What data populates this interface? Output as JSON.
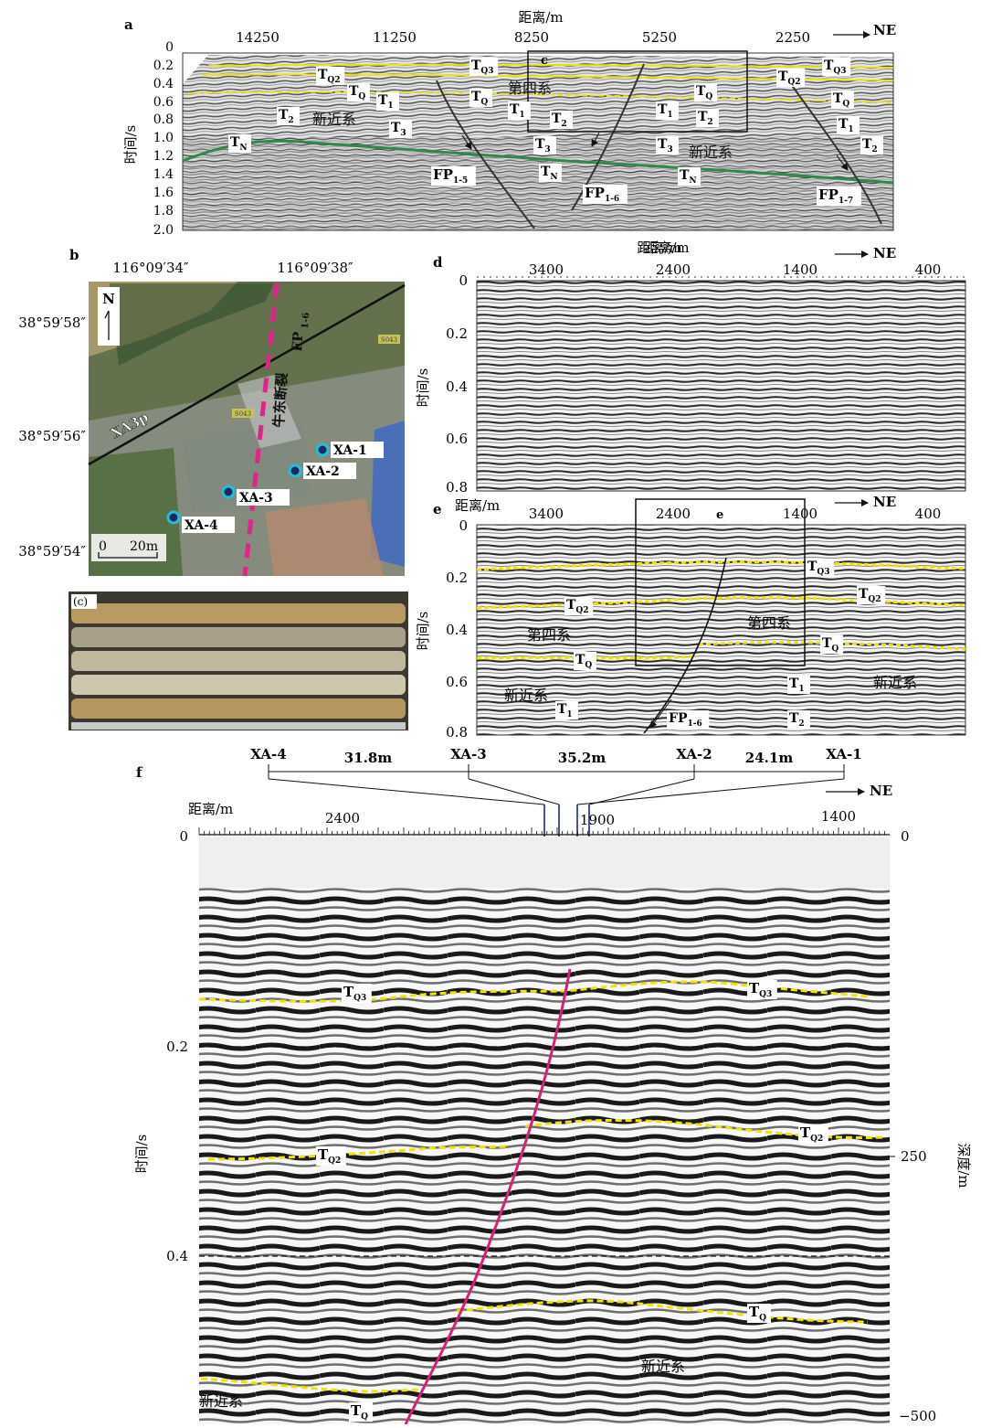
{
  "panels": {
    "a": {
      "letter": "a",
      "xaxis_title": "距离/m",
      "xaxis_bottom_title": "距离/m",
      "yaxis_title": "时间/s",
      "x_ticks": [
        "14250",
        "11250",
        "8250",
        "5250",
        "2250"
      ],
      "y_ticks": [
        "0",
        "0.2",
        "0.4",
        "0.6",
        "0.8",
        "1.0",
        "1.2",
        "1.4",
        "1.6",
        "1.8",
        "2.0"
      ],
      "direction": "NE",
      "box_label": "c",
      "layers_cn": [
        "新近系",
        "第四系",
        "新近系"
      ],
      "horizon_labels": [
        {
          "base": "T",
          "sub": "Q2"
        },
        {
          "base": "T",
          "sub": "Q"
        },
        {
          "base": "T",
          "sub": "1"
        },
        {
          "base": "T",
          "sub": "2"
        },
        {
          "base": "T",
          "sub": "3"
        },
        {
          "base": "T",
          "sub": "N"
        },
        {
          "base": "T",
          "sub": "Q3"
        },
        {
          "base": "T",
          "sub": "Q"
        },
        {
          "base": "T",
          "sub": "1"
        },
        {
          "base": "T",
          "sub": "2"
        },
        {
          "base": "T",
          "sub": "3"
        },
        {
          "base": "T",
          "sub": "N"
        },
        {
          "base": "T",
          "sub": "1"
        },
        {
          "base": "T",
          "sub": "Q"
        },
        {
          "base": "T",
          "sub": "2"
        },
        {
          "base": "T",
          "sub": "3"
        },
        {
          "base": "T",
          "sub": "N"
        },
        {
          "base": "T",
          "sub": "Q3"
        },
        {
          "base": "T",
          "sub": "Q2"
        },
        {
          "base": "T",
          "sub": "Q"
        },
        {
          "base": "T",
          "sub": "1"
        },
        {
          "base": "T",
          "sub": "2"
        }
      ],
      "faults": [
        {
          "base": "FP",
          "sub": "1-5"
        },
        {
          "base": "FP",
          "sub": "1-6"
        },
        {
          "base": "FP",
          "sub": "1-7"
        }
      ]
    },
    "b": {
      "letter": "b",
      "lon_ticks": [
        "116°09′34″",
        "116°09′38″"
      ],
      "lat_ticks": [
        "38°59′58″",
        "38°59′56″",
        "38°59′54″"
      ],
      "north": "N",
      "scale": {
        "zero": "0",
        "length": "20m"
      },
      "line_label": "XA3p",
      "fault_label_cn": "牛东断裂",
      "fault_label": {
        "base": "FP",
        "sub": "1-6"
      },
      "road_signs": [
        "S043",
        "S043"
      ],
      "wells": [
        "XA-1",
        "XA-2",
        "XA-3",
        "XA-4"
      ]
    },
    "c": {
      "letter": "(c)"
    },
    "d": {
      "letter": "d",
      "xaxis_title": "距离/m",
      "yaxis_title": "时间/s",
      "x_ticks": [
        "3400",
        "2400",
        "1400",
        "400"
      ],
      "y_ticks": [
        "0",
        "0.2",
        "0.4",
        "0.6",
        "0.8"
      ],
      "direction": "NE"
    },
    "e": {
      "letter": "e",
      "xaxis_title": "距离/m",
      "yaxis_title": "时间/s",
      "x_ticks": [
        "3400",
        "2400",
        "1400",
        "400"
      ],
      "y_ticks": [
        "0",
        "0.2",
        "0.4",
        "0.6",
        "0.8"
      ],
      "direction": "NE",
      "box_label": "e",
      "layers_cn": [
        "第四系",
        "新近系",
        "第四系",
        "新近系"
      ],
      "horizon_labels": [
        {
          "base": "T",
          "sub": "Q3"
        },
        {
          "base": "T",
          "sub": "Q2"
        },
        {
          "base": "T",
          "sub": "Q2"
        },
        {
          "base": "T",
          "sub": "Q"
        },
        {
          "base": "T",
          "sub": "Q"
        },
        {
          "base": "T",
          "sub": "1"
        },
        {
          "base": "T",
          "sub": "1"
        },
        {
          "base": "T",
          "sub": "2"
        }
      ],
      "fault": {
        "base": "FP",
        "sub": "1-6"
      }
    },
    "f": {
      "letter": "f",
      "xaxis_title": "距离/m",
      "yaxis_title": "时间/s",
      "y2axis_title": "深度/m",
      "x_ticks": [
        "2400",
        "1900",
        "1400"
      ],
      "y_ticks": [
        "0",
        "0.2",
        "0.4"
      ],
      "y2_ticks": [
        "0",
        "250",
        "−500"
      ],
      "direction": "NE",
      "wells": [
        "XA-4",
        "XA-3",
        "XA-2",
        "XA-1"
      ],
      "spacings": [
        "31.8m",
        "35.2m",
        "24.1m"
      ],
      "layers_cn": [
        "新近系",
        "新近系"
      ],
      "horizon_labels": [
        {
          "base": "T",
          "sub": "Q3"
        },
        {
          "base": "T",
          "sub": "Q3"
        },
        {
          "base": "T",
          "sub": "Q2"
        },
        {
          "base": "T",
          "sub": "Q2"
        },
        {
          "base": "T",
          "sub": "Q"
        },
        {
          "base": "T",
          "sub": "Q"
        }
      ]
    }
  },
  "colors": {
    "horizon_yellow": "#f2e200",
    "tn_green": "#2f8a4a",
    "fault_magenta": "#d8207a",
    "well_marker": "#20c0d8",
    "arrow_blue": "#1a2a8c"
  }
}
